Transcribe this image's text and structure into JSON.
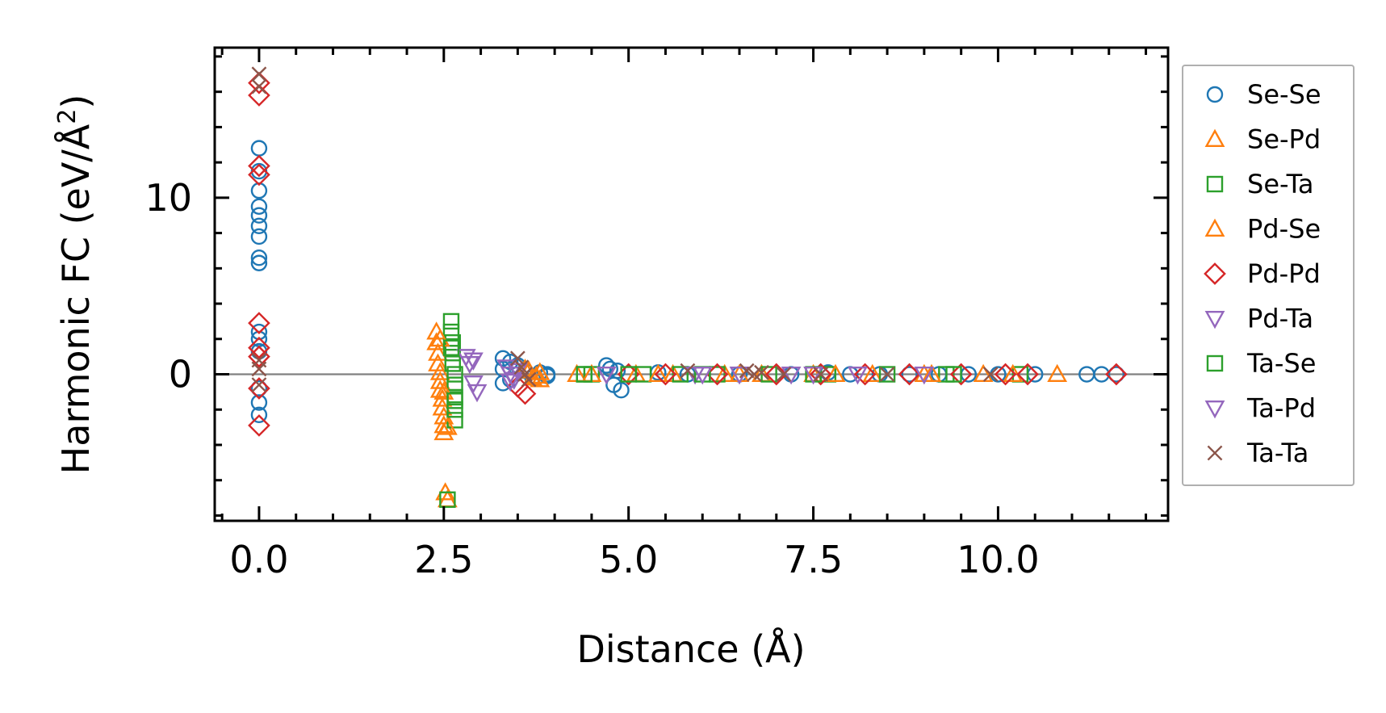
{
  "chart_data": {
    "type": "scatter",
    "xlabel": "Distance (Å)",
    "ylabel": "Harmonic FC (eV/Å²)",
    "ylabel_base": "Harmonic FC (eV/Å",
    "ylabel_sup": "2",
    "ylabel_close": ")",
    "xlim": [
      -0.6,
      12.3
    ],
    "ylim": [
      -8.3,
      18.5
    ],
    "xticks": [
      0.0,
      2.5,
      5.0,
      7.5,
      10.0
    ],
    "xtick_labels": [
      "0.0",
      "2.5",
      "5.0",
      "7.5",
      "10.0"
    ],
    "yticks": [
      0,
      10
    ],
    "ytick_labels": [
      "0",
      "10"
    ],
    "grid": false,
    "reference_line_y": 0,
    "legend_position": "outside-right",
    "series": [
      {
        "name": "Se-Se",
        "marker": "circle",
        "color": "#1f77b4",
        "x": [
          0,
          0,
          0,
          0,
          0,
          0,
          0,
          0,
          0,
          0,
          0,
          0,
          0,
          0,
          0,
          3.3,
          3.3,
          3.3,
          3.4,
          3.4,
          3.5,
          3.6,
          3.7,
          3.8,
          3.9,
          3.9,
          4.7,
          4.75,
          4.8,
          4.85,
          4.9,
          5.4,
          5.8,
          6.5,
          7.2,
          7.7,
          8.0,
          8.4,
          8.8,
          9.2,
          9.6,
          10.0,
          10.5,
          11.2,
          11.4,
          11.6
        ],
        "y": [
          12.8,
          11.5,
          10.4,
          9.5,
          9.0,
          8.4,
          7.8,
          6.6,
          6.3,
          2.4,
          2.0,
          1.3,
          -0.8,
          -1.6,
          -2.3,
          0.9,
          0.3,
          -0.5,
          0.7,
          -0.3,
          0.5,
          0.2,
          -0.2,
          0.1,
          0.0,
          -0.1,
          0.5,
          0.3,
          -0.6,
          0.2,
          -0.9,
          0.1,
          0.0,
          0.0,
          0.0,
          0.1,
          0.0,
          0.0,
          0.0,
          0.0,
          0.0,
          0.0,
          0.0,
          0.0,
          0.0,
          0.0
        ]
      },
      {
        "name": "Se-Pd",
        "marker": "triangle-up",
        "color": "#ff7f0e",
        "x": [
          2.4,
          2.4,
          2.42,
          2.42,
          2.45,
          2.45,
          2.45,
          2.48,
          2.48,
          2.5,
          2.5,
          2.5,
          2.52,
          2.55,
          3.6,
          3.7,
          3.8,
          3.8,
          4.3,
          5.1,
          5.6,
          6.3,
          6.8,
          7.5,
          8.3,
          9.0,
          9.8,
          10.8
        ],
        "y": [
          2.4,
          1.8,
          1.2,
          0.6,
          0.1,
          -0.4,
          -0.9,
          -1.4,
          -1.9,
          -2.4,
          -2.9,
          -3.3,
          -6.7,
          -7.1,
          0.3,
          -0.2,
          0.1,
          -0.3,
          0.0,
          0.0,
          0.0,
          0.0,
          0.0,
          0.0,
          0.0,
          0.0,
          0.0,
          0.0
        ]
      },
      {
        "name": "Se-Ta",
        "marker": "square",
        "color": "#2ca02c",
        "x": [
          2.55,
          2.6,
          2.6,
          2.62,
          2.62,
          2.62,
          2.65,
          2.65,
          2.65,
          2.65,
          2.65,
          4.4,
          4.5,
          5.2,
          5.7,
          6.2,
          6.9,
          7.7,
          8.5,
          9.3,
          10.3
        ],
        "y": [
          -7.1,
          3.0,
          2.4,
          1.8,
          1.2,
          0.6,
          0.0,
          -0.6,
          -1.3,
          -2.0,
          -2.6,
          0.0,
          0.0,
          0.0,
          0.0,
          0.0,
          0.0,
          0.0,
          0.0,
          0.0,
          0.0
        ]
      },
      {
        "name": "Pd-Se",
        "marker": "triangle-up",
        "color": "#ff7f0e",
        "x": [
          2.45,
          2.5,
          2.55,
          3.65,
          3.75,
          4.5,
          5.4,
          6.5,
          7.8,
          9.1,
          10.2
        ],
        "y": [
          2.0,
          -1.0,
          -3.0,
          0.2,
          -0.1,
          0.0,
          0.0,
          0.0,
          0.0,
          0.0,
          0.0
        ]
      },
      {
        "name": "Pd-Pd",
        "marker": "diamond",
        "color": "#d62728",
        "x": [
          0,
          0,
          0,
          0,
          0,
          0,
          0,
          0,
          0,
          3.5,
          3.6,
          5.0,
          5.5,
          6.2,
          7.0,
          7.6,
          8.2,
          8.8,
          9.5,
          10.1,
          10.4,
          11.6
        ],
        "y": [
          16.5,
          15.8,
          11.8,
          11.3,
          2.9,
          1.5,
          1.0,
          -0.8,
          -2.9,
          -0.7,
          -1.1,
          0.0,
          0.0,
          0.0,
          0.0,
          0.0,
          0.0,
          0.0,
          0.0,
          0.0,
          0.0,
          0.0
        ]
      },
      {
        "name": "Pd-Ta",
        "marker": "triangle-down",
        "color": "#9467bd",
        "x": [
          2.8,
          2.85,
          2.9,
          2.95,
          3.35,
          3.4,
          3.45,
          3.5,
          4.7,
          5.9,
          6.5,
          7.2,
          8.1,
          9.0
        ],
        "y": [
          1.0,
          0.6,
          -0.5,
          -1.0,
          0.4,
          0.0,
          -0.3,
          0.2,
          0.0,
          0.0,
          0.0,
          0.0,
          0.0,
          0.0
        ]
      },
      {
        "name": "Ta-Se",
        "marker": "square",
        "color": "#2ca02c",
        "x": [
          2.6,
          2.65,
          4.4,
          5.0,
          6.0,
          7.5,
          9.4
        ],
        "y": [
          1.5,
          -1.5,
          0.0,
          0.0,
          0.0,
          0.0,
          0.0
        ]
      },
      {
        "name": "Ta-Pd",
        "marker": "triangle-down",
        "color": "#9467bd",
        "x": [
          2.9,
          3.4,
          6.0,
          7.5
        ],
        "y": [
          0.8,
          -0.4,
          0.0,
          0.0
        ]
      },
      {
        "name": "Ta-Ta",
        "marker": "x",
        "color": "#8c564b",
        "x": [
          0,
          0,
          0,
          0,
          0,
          3.5,
          3.55,
          3.6,
          3.65,
          5.8,
          6.6,
          6.7,
          6.8,
          7.1,
          7.6,
          8.5,
          9.9
        ],
        "y": [
          17.0,
          16.3,
          0.8,
          0.3,
          -0.6,
          0.9,
          0.4,
          0.0,
          -0.3,
          0.2,
          0.2,
          0.0,
          0.1,
          0.0,
          0.0,
          0.0,
          0.0
        ]
      }
    ]
  }
}
